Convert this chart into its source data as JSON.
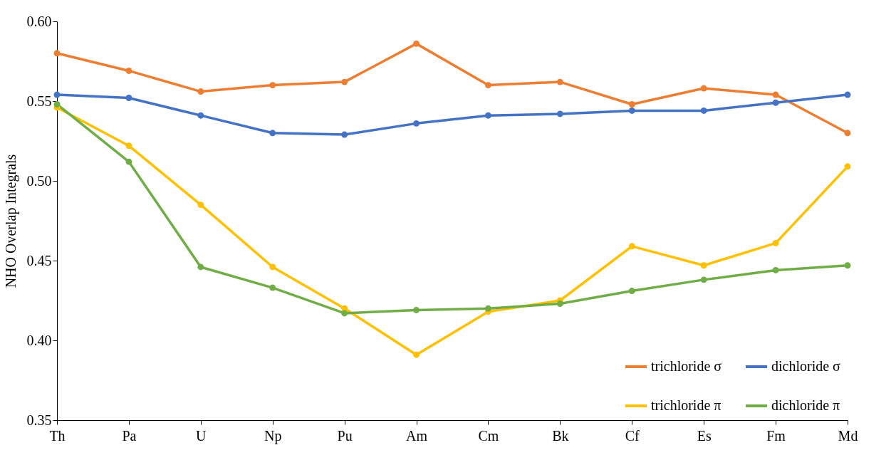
{
  "chart_data": {
    "type": "line",
    "ylabel": "NHO Overlap Integrals",
    "categories": [
      "Th",
      "Pa",
      "U",
      "Np",
      "Pu",
      "Am",
      "Cm",
      "Bk",
      "Cf",
      "Es",
      "Fm",
      "Md"
    ],
    "series": [
      {
        "name": "trichloride σ",
        "color": "#ed7d31",
        "values": [
          0.58,
          0.569,
          0.556,
          0.56,
          0.562,
          0.586,
          0.56,
          0.562,
          0.548,
          0.558,
          0.554,
          0.53
        ]
      },
      {
        "name": "dichloride σ",
        "color": "#4472c4",
        "values": [
          0.554,
          0.552,
          0.541,
          0.53,
          0.529,
          0.536,
          0.541,
          0.542,
          0.544,
          0.544,
          0.549,
          0.554
        ]
      },
      {
        "name": "trichloride π",
        "color": "#ffc000",
        "values": [
          0.546,
          0.522,
          0.485,
          0.446,
          0.42,
          0.391,
          0.418,
          0.425,
          0.459,
          0.447,
          0.461,
          0.509
        ]
      },
      {
        "name": "dichloride π",
        "color": "#70ad47",
        "values": [
          0.548,
          0.512,
          0.446,
          0.433,
          0.417,
          0.419,
          0.42,
          0.423,
          0.431,
          0.438,
          0.444,
          0.447
        ]
      }
    ],
    "ylim": [
      0.35,
      0.6
    ],
    "yticks": [
      0.35,
      {
        "value": 0.4,
        "label": "0.40"
      },
      0.45,
      {
        "value": 0.5,
        "label": "0.50"
      },
      0.55,
      {
        "value": 0.6,
        "label": "0.60"
      }
    ],
    "grid": false,
    "legend": "bottom right",
    "marker": "circle",
    "line_style": "solid"
  }
}
